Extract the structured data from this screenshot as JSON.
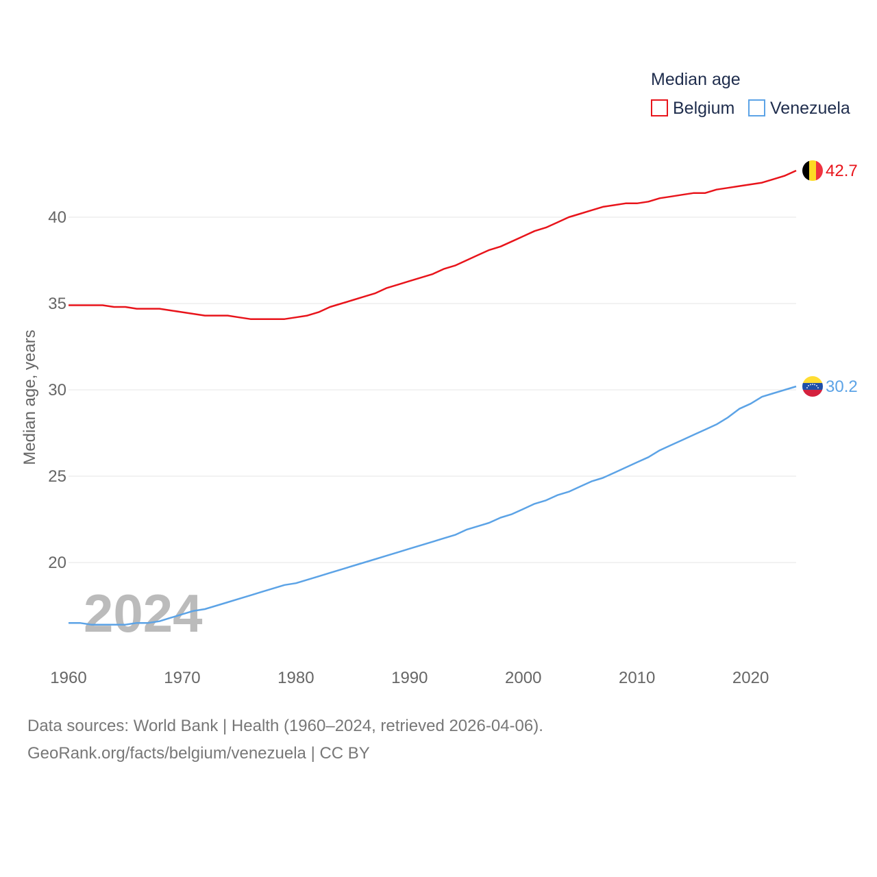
{
  "chart_data": {
    "type": "line",
    "title": "",
    "xlabel": "",
    "ylabel": "Median age, years",
    "xlim": [
      1960,
      2024
    ],
    "ylim": [
      15,
      44
    ],
    "x_ticks": [
      1960,
      1970,
      1980,
      1990,
      2000,
      2010,
      2020
    ],
    "y_ticks": [
      20,
      25,
      30,
      35,
      40
    ],
    "grid": true,
    "legend": {
      "title": "Median age",
      "position": "top-right"
    },
    "year_label": "2024",
    "x": [
      1960,
      1961,
      1962,
      1963,
      1964,
      1965,
      1966,
      1967,
      1968,
      1969,
      1970,
      1971,
      1972,
      1973,
      1974,
      1975,
      1976,
      1977,
      1978,
      1979,
      1980,
      1981,
      1982,
      1983,
      1984,
      1985,
      1986,
      1987,
      1988,
      1989,
      1990,
      1991,
      1992,
      1993,
      1994,
      1995,
      1996,
      1997,
      1998,
      1999,
      2000,
      2001,
      2002,
      2003,
      2004,
      2005,
      2006,
      2007,
      2008,
      2009,
      2010,
      2011,
      2012,
      2013,
      2014,
      2015,
      2016,
      2017,
      2018,
      2019,
      2020,
      2021,
      2022,
      2023,
      2024
    ],
    "series": [
      {
        "name": "Belgium",
        "color": "#e8141b",
        "end_label": "42.7",
        "values": [
          34.9,
          34.9,
          34.9,
          34.9,
          34.8,
          34.8,
          34.7,
          34.7,
          34.7,
          34.6,
          34.5,
          34.4,
          34.3,
          34.3,
          34.3,
          34.2,
          34.1,
          34.1,
          34.1,
          34.1,
          34.2,
          34.3,
          34.5,
          34.8,
          35.0,
          35.2,
          35.4,
          35.6,
          35.9,
          36.1,
          36.3,
          36.5,
          36.7,
          37.0,
          37.2,
          37.5,
          37.8,
          38.1,
          38.3,
          38.6,
          38.9,
          39.2,
          39.4,
          39.7,
          40.0,
          40.2,
          40.4,
          40.6,
          40.7,
          40.8,
          40.8,
          40.9,
          41.1,
          41.2,
          41.3,
          41.4,
          41.4,
          41.6,
          41.7,
          41.8,
          41.9,
          42.0,
          42.2,
          42.4,
          42.7
        ]
      },
      {
        "name": "Venezuela",
        "color": "#5ca3e6",
        "end_label": "30.2",
        "values": [
          16.5,
          16.5,
          16.4,
          16.4,
          16.4,
          16.4,
          16.5,
          16.5,
          16.6,
          16.8,
          17.0,
          17.2,
          17.3,
          17.5,
          17.7,
          17.9,
          18.1,
          18.3,
          18.5,
          18.7,
          18.8,
          19.0,
          19.2,
          19.4,
          19.6,
          19.8,
          20.0,
          20.2,
          20.4,
          20.6,
          20.8,
          21.0,
          21.2,
          21.4,
          21.6,
          21.9,
          22.1,
          22.3,
          22.6,
          22.8,
          23.1,
          23.4,
          23.6,
          23.9,
          24.1,
          24.4,
          24.7,
          24.9,
          25.2,
          25.5,
          25.8,
          26.1,
          26.5,
          26.8,
          27.1,
          27.4,
          27.7,
          28.0,
          28.4,
          28.9,
          29.2,
          29.6,
          29.8,
          30.0,
          30.2
        ]
      }
    ]
  },
  "footer": {
    "sources": "Data sources: World Bank | Health (1960–2024, retrieved 2026-04-06).",
    "credit": "GeoRank.org/facts/belgium/venezuela | CC BY"
  }
}
